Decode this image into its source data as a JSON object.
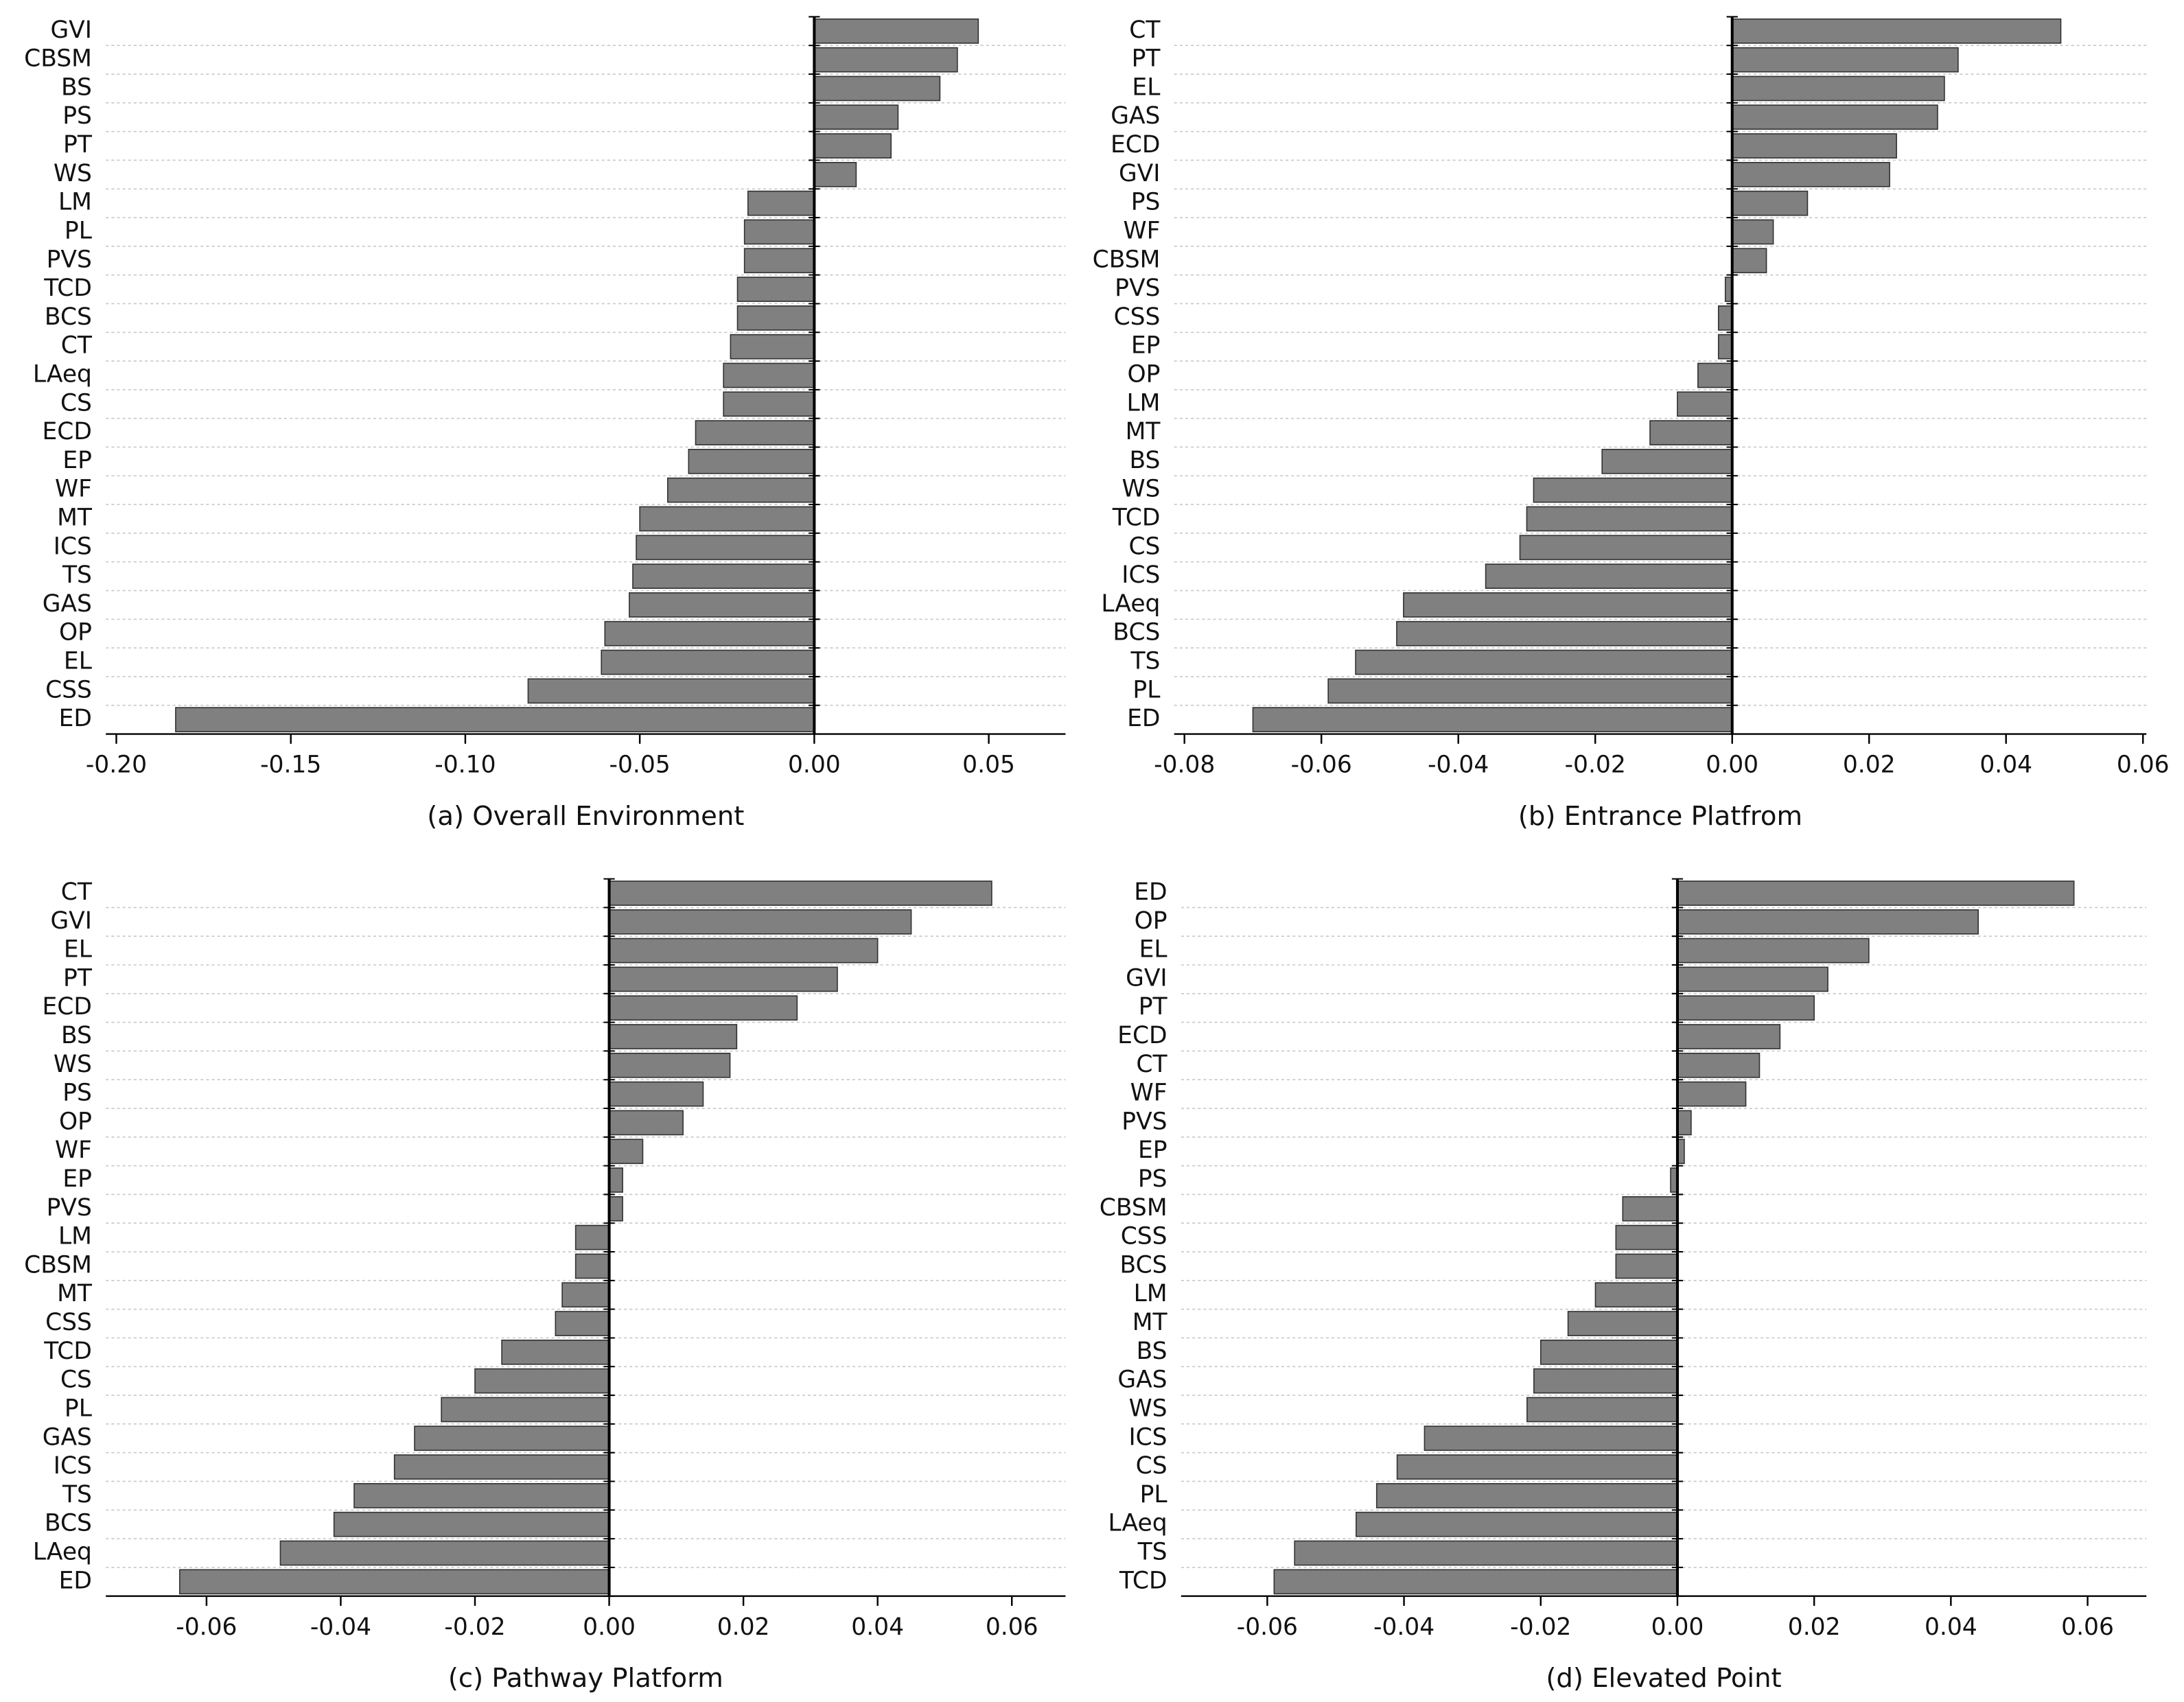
{
  "chart_data": [
    {
      "type": "bar",
      "orientation": "horizontal",
      "caption": "(a) Overall Environment",
      "color": "#808080",
      "grid": true,
      "categories": [
        "GVI",
        "CBSM",
        "BS",
        "PS",
        "PT",
        "WS",
        "LM",
        "PL",
        "PVS",
        "TCD",
        "BCS",
        "CT",
        "LAeq",
        "CS",
        "ECD",
        "EP",
        "WF",
        "MT",
        "ICS",
        "TS",
        "GAS",
        "OP",
        "EL",
        "CSS",
        "ED"
      ],
      "values": [
        0.047,
        0.041,
        0.036,
        0.024,
        0.022,
        0.012,
        -0.019,
        -0.02,
        -0.02,
        -0.022,
        -0.022,
        -0.024,
        -0.026,
        -0.026,
        -0.034,
        -0.036,
        -0.042,
        -0.05,
        -0.051,
        -0.052,
        -0.053,
        -0.06,
        -0.061,
        -0.082,
        -0.183
      ],
      "xlim": [
        -0.203,
        0.072
      ],
      "xticks": [
        {
          "value": -0.2,
          "label": "-0.20"
        },
        -0.15,
        {
          "value": -0.1,
          "label": "-0.10"
        },
        -0.05,
        {
          "value": 0,
          "label": "0.00"
        },
        0.05
      ]
    },
    {
      "type": "bar",
      "orientation": "horizontal",
      "caption": "(b) Entrance Platfrom",
      "color": "#808080",
      "grid": true,
      "categories": [
        "CT",
        "PT",
        "EL",
        "GAS",
        "ECD",
        "GVI",
        "PS",
        "WF",
        "CBSM",
        "PVS",
        "CSS",
        "EP",
        "OP",
        "LM",
        "MT",
        "BS",
        "WS",
        "TCD",
        "CS",
        "ICS",
        "LAeq",
        "BCS",
        "TS",
        "PL",
        "ED"
      ],
      "values": [
        0.048,
        0.033,
        0.031,
        0.03,
        0.024,
        0.023,
        0.011,
        0.006,
        0.005,
        -0.001,
        -0.002,
        -0.002,
        -0.005,
        -0.008,
        -0.012,
        -0.019,
        -0.029,
        -0.03,
        -0.031,
        -0.036,
        -0.048,
        -0.049,
        -0.055,
        -0.059,
        -0.07
      ],
      "xlim": [
        -0.0815,
        0.0605
      ],
      "xticks": [
        -0.08,
        -0.06,
        -0.04,
        -0.02,
        {
          "value": 0,
          "label": "0.00"
        },
        0.02,
        0.04,
        0.06
      ]
    },
    {
      "type": "bar",
      "orientation": "horizontal",
      "caption": "(c) Pathway Platform",
      "color": "#808080",
      "grid": true,
      "categories": [
        "CT",
        "GVI",
        "EL",
        "PT",
        "ECD",
        "BS",
        "WS",
        "PS",
        "OP",
        "WF",
        "EP",
        "PVS",
        "LM",
        "CBSM",
        "MT",
        "CSS",
        "TCD",
        "CS",
        "PL",
        "GAS",
        "ICS",
        "TS",
        "BCS",
        "LAeq",
        "ED"
      ],
      "values": [
        0.057,
        0.045,
        0.04,
        0.034,
        0.028,
        0.019,
        0.018,
        0.014,
        0.011,
        0.005,
        0.002,
        0.002,
        -0.005,
        -0.005,
        -0.007,
        -0.008,
        -0.016,
        -0.02,
        -0.025,
        -0.029,
        -0.032,
        -0.038,
        -0.041,
        -0.049,
        -0.064
      ],
      "xlim": [
        -0.075,
        0.068
      ],
      "xticks": [
        -0.06,
        -0.04,
        -0.02,
        {
          "value": 0,
          "label": "0.00"
        },
        0.02,
        0.04,
        0.06
      ]
    },
    {
      "type": "bar",
      "orientation": "horizontal",
      "caption": "(d) Elevated Point",
      "color": "#808080",
      "grid": true,
      "categories": [
        "ED",
        "OP",
        "EL",
        "GVI",
        "PT",
        "ECD",
        "CT",
        "WF",
        "PVS",
        "EP",
        "PS",
        "CBSM",
        "CSS",
        "BCS",
        "LM",
        "MT",
        "BS",
        "GAS",
        "WS",
        "ICS",
        "CS",
        "PL",
        "LAeq",
        "TS",
        "TCD"
      ],
      "values": [
        0.058,
        0.044,
        0.028,
        0.022,
        0.02,
        0.015,
        0.012,
        0.01,
        0.002,
        0.001,
        -0.001,
        -0.008,
        -0.009,
        -0.009,
        -0.012,
        -0.016,
        -0.02,
        -0.021,
        -0.022,
        -0.037,
        -0.041,
        -0.044,
        -0.047,
        -0.056,
        -0.059
      ],
      "xlim": [
        -0.0726,
        0.0686
      ],
      "xticks": [
        -0.06,
        -0.04,
        -0.02,
        {
          "value": 0,
          "label": "0.00"
        },
        0.02,
        0.04,
        0.06
      ]
    }
  ]
}
